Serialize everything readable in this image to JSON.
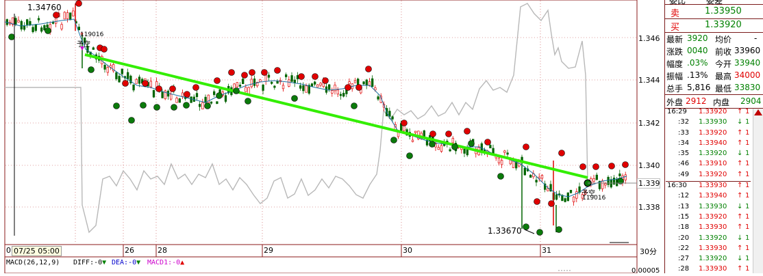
{
  "chart": {
    "high_label": "1.34760",
    "low_label": "1.33670",
    "marker_top_label": "119016",
    "marker_top_text": "予空",
    "marker_bottom_label": "119016",
    "marker_bottom_text": "予空",
    "price_ticks": [
      "1.346",
      "1.344",
      "1.342",
      "1.340",
      "1.338"
    ],
    "current_price": "1.339",
    "date_labels": [
      "07/25 05:00",
      "26",
      "28",
      "29",
      "30",
      "31"
    ],
    "date_prefix": "0",
    "period": "30分",
    "macd_label": "MACD(26,12,9)",
    "diff_label": "DIFF:-0",
    "dea_label": "DEA:-0",
    "macd1_label": "MACD1:-0",
    "macd_scale": "0.00005"
  },
  "quote": {
    "header_left": "委比",
    "header_right": "委差",
    "sell_label": "卖",
    "sell_value": "1.33950",
    "buy_label": "买",
    "buy_value": "1.33920",
    "rows": [
      {
        "l1": "最新",
        "v1": "3920",
        "l2": "均价",
        "v2": "-"
      },
      {
        "l1": "涨跌",
        "v1": "0040",
        "l2": "前收",
        "v2": "33960"
      },
      {
        "l1": "幅度",
        "v1": ".03%",
        "l2": "今开",
        "v2": "33940"
      },
      {
        "l1": "振幅",
        "v1": ".13%",
        "l2": "最高",
        "v2": "34000"
      },
      {
        "l1": "总手",
        "v1": "5,816",
        "l2": "最低",
        "v2": "33830"
      }
    ],
    "outer_label": "外盘",
    "outer_value": "2912",
    "inner_label": "内盘",
    "inner_value": "2904"
  },
  "ticks": [
    {
      "t": "16:29",
      "p": "1.33920",
      "d": "up",
      "q": "1"
    },
    {
      "t": ":32",
      "p": "1.33930",
      "d": "down",
      "q": "1"
    },
    {
      "t": ":33",
      "p": "1.33920",
      "d": "up",
      "q": "1"
    },
    {
      "t": ":34",
      "p": "1.33940",
      "d": "up",
      "q": "1"
    },
    {
      "t": ":35",
      "p": "1.33920",
      "d": "down",
      "q": "1"
    },
    {
      "t": ":46",
      "p": "1.33910",
      "d": "up",
      "q": "1"
    },
    {
      "t": ":49",
      "p": "1.33920",
      "d": "up",
      "q": "1"
    },
    {
      "t": "16:30",
      "p": "1.33930",
      "d": "up",
      "q": "1"
    },
    {
      "t": ":12",
      "p": "1.33940",
      "d": "up",
      "q": "1"
    },
    {
      "t": ":13",
      "p": "1.33930",
      "d": "down",
      "q": "1"
    },
    {
      "t": ":15",
      "p": "1.33920",
      "d": "up",
      "q": "1"
    },
    {
      "t": ":18",
      "p": "1.33930",
      "d": "up",
      "q": "1"
    },
    {
      "t": ":20",
      "p": "1.33920",
      "d": "down",
      "q": "1"
    },
    {
      "t": ":22",
      "p": "1.33930",
      "d": "up",
      "q": "1"
    },
    {
      "t": ":27",
      "p": "1.33920",
      "d": "down",
      "q": "1"
    },
    {
      "t": ":28",
      "p": "1.33930",
      "d": "up",
      "q": "1"
    }
  ],
  "colors": {
    "up": "#e00000",
    "down": "#008000",
    "trend": "#33ee00",
    "ma": "#1a6ea0",
    "compare": "#b8b8b8"
  }
}
